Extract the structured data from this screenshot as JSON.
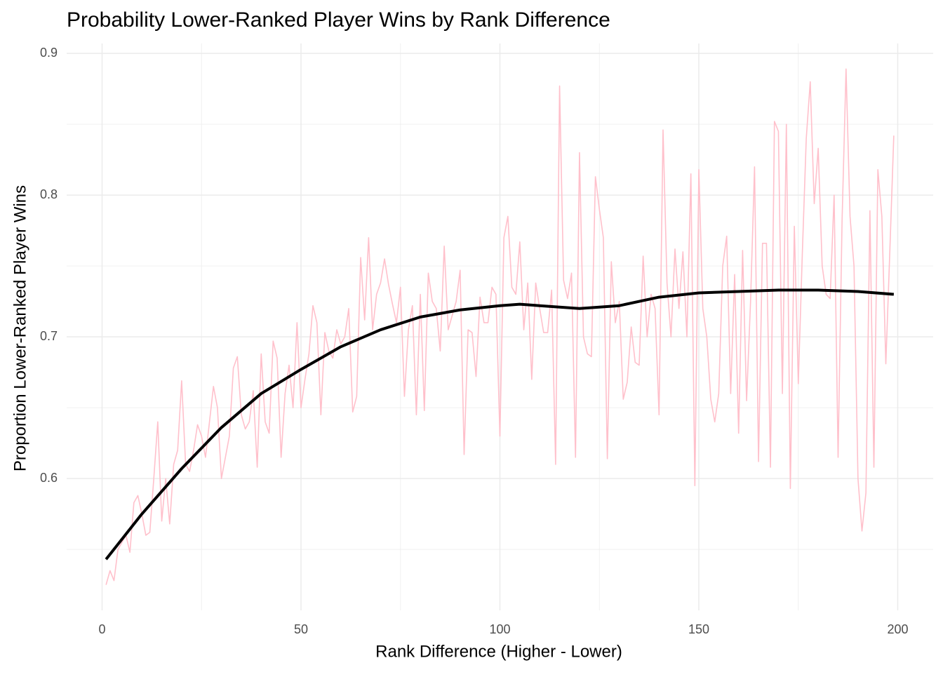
{
  "chart_data": {
    "type": "line",
    "title": "Probability Lower-Ranked Player Wins by Rank Difference",
    "x_label": "Rank Difference (Higher - Lower)",
    "y_label": "Proportion Lower-Ranked Player Wins",
    "xlim": [
      -8.9,
      208.9
    ],
    "ylim": [
      0.507,
      0.907
    ],
    "xticks": [
      0,
      50,
      100,
      150,
      200
    ],
    "yticks": [
      0.6,
      0.7,
      0.8,
      0.9
    ],
    "minor_xticks": [
      25,
      75,
      125,
      175
    ],
    "minor_yticks": [
      0.55,
      0.65,
      0.75,
      0.85
    ],
    "grid": true,
    "series": [
      {
        "color": "#ffc0cb",
        "x": [
          1,
          2,
          3,
          4,
          5,
          6,
          7,
          8,
          9,
          10,
          11,
          12,
          13,
          14,
          15,
          16,
          17,
          18,
          19,
          20,
          21,
          22,
          23,
          24,
          25,
          26,
          27,
          28,
          29,
          30,
          31,
          32,
          33,
          34,
          35,
          36,
          37,
          38,
          39,
          40,
          41,
          42,
          43,
          44,
          45,
          46,
          47,
          48,
          49,
          50,
          51,
          52,
          53,
          54,
          55,
          56,
          57,
          58,
          59,
          60,
          61,
          62,
          63,
          64,
          65,
          66,
          67,
          68,
          69,
          70,
          71,
          72,
          73,
          74,
          75,
          76,
          77,
          78,
          79,
          80,
          81,
          82,
          83,
          84,
          85,
          86,
          87,
          88,
          89,
          90,
          91,
          92,
          93,
          94,
          95,
          96,
          97,
          98,
          99,
          100,
          101,
          102,
          103,
          104,
          105,
          106,
          107,
          108,
          109,
          110,
          111,
          112,
          113,
          114,
          115,
          116,
          117,
          118,
          119,
          120,
          121,
          122,
          123,
          124,
          125,
          126,
          127,
          128,
          129,
          130,
          131,
          132,
          133,
          134,
          135,
          136,
          137,
          138,
          139,
          140,
          141,
          142,
          143,
          144,
          145,
          146,
          147,
          148,
          149,
          150,
          151,
          152,
          153,
          154,
          155,
          156,
          157,
          158,
          159,
          160,
          161,
          162,
          163,
          164,
          165,
          166,
          167,
          168,
          169,
          170,
          171,
          172,
          173,
          174,
          175,
          176,
          177,
          178,
          179,
          180,
          181,
          182,
          183,
          184,
          185,
          186,
          187,
          188,
          189,
          190,
          191,
          192,
          193,
          194,
          195,
          196,
          197,
          198,
          199
        ],
        "values": [
          0.525,
          0.535,
          0.528,
          0.55,
          0.555,
          0.56,
          0.548,
          0.583,
          0.588,
          0.575,
          0.56,
          0.562,
          0.6,
          0.64,
          0.57,
          0.6,
          0.568,
          0.61,
          0.62,
          0.669,
          0.61,
          0.605,
          0.62,
          0.638,
          0.63,
          0.615,
          0.64,
          0.665,
          0.65,
          0.6,
          0.615,
          0.63,
          0.678,
          0.686,
          0.645,
          0.635,
          0.64,
          0.662,
          0.608,
          0.688,
          0.64,
          0.632,
          0.697,
          0.685,
          0.615,
          0.66,
          0.68,
          0.65,
          0.71,
          0.65,
          0.67,
          0.688,
          0.722,
          0.71,
          0.645,
          0.703,
          0.69,
          0.685,
          0.705,
          0.695,
          0.7,
          0.72,
          0.647,
          0.658,
          0.756,
          0.712,
          0.77,
          0.705,
          0.73,
          0.738,
          0.755,
          0.737,
          0.723,
          0.71,
          0.735,
          0.658,
          0.705,
          0.722,
          0.645,
          0.73,
          0.648,
          0.745,
          0.725,
          0.72,
          0.69,
          0.764,
          0.705,
          0.715,
          0.725,
          0.747,
          0.617,
          0.705,
          0.703,
          0.672,
          0.728,
          0.71,
          0.71,
          0.735,
          0.73,
          0.63,
          0.77,
          0.785,
          0.735,
          0.73,
          0.767,
          0.705,
          0.738,
          0.67,
          0.738,
          0.72,
          0.703,
          0.703,
          0.733,
          0.61,
          0.877,
          0.74,
          0.727,
          0.745,
          0.615,
          0.83,
          0.7,
          0.688,
          0.686,
          0.813,
          0.79,
          0.77,
          0.614,
          0.753,
          0.71,
          0.725,
          0.656,
          0.668,
          0.707,
          0.682,
          0.68,
          0.757,
          0.7,
          0.73,
          0.72,
          0.645,
          0.846,
          0.738,
          0.7,
          0.762,
          0.72,
          0.76,
          0.7,
          0.815,
          0.595,
          0.818,
          0.72,
          0.7,
          0.656,
          0.64,
          0.66,
          0.75,
          0.771,
          0.66,
          0.744,
          0.632,
          0.761,
          0.655,
          0.725,
          0.82,
          0.612,
          0.766,
          0.766,
          0.608,
          0.852,
          0.845,
          0.66,
          0.85,
          0.593,
          0.778,
          0.667,
          0.758,
          0.84,
          0.88,
          0.794,
          0.833,
          0.75,
          0.73,
          0.727,
          0.8,
          0.615,
          0.782,
          0.889,
          0.785,
          0.75,
          0.6,
          0.563,
          0.59,
          0.789,
          0.608,
          0.818,
          0.785,
          0.681,
          0.76,
          0.842
        ]
      },
      {
        "color": "#000000",
        "x": [
          1,
          10,
          20,
          30,
          40,
          50,
          60,
          70,
          80,
          90,
          100,
          105,
          110,
          120,
          130,
          140,
          150,
          160,
          170,
          180,
          190,
          199
        ],
        "values": [
          0.543,
          0.575,
          0.607,
          0.636,
          0.66,
          0.677,
          0.693,
          0.705,
          0.714,
          0.719,
          0.722,
          0.723,
          0.722,
          0.72,
          0.722,
          0.728,
          0.731,
          0.732,
          0.733,
          0.733,
          0.732,
          0.73
        ]
      }
    ]
  }
}
